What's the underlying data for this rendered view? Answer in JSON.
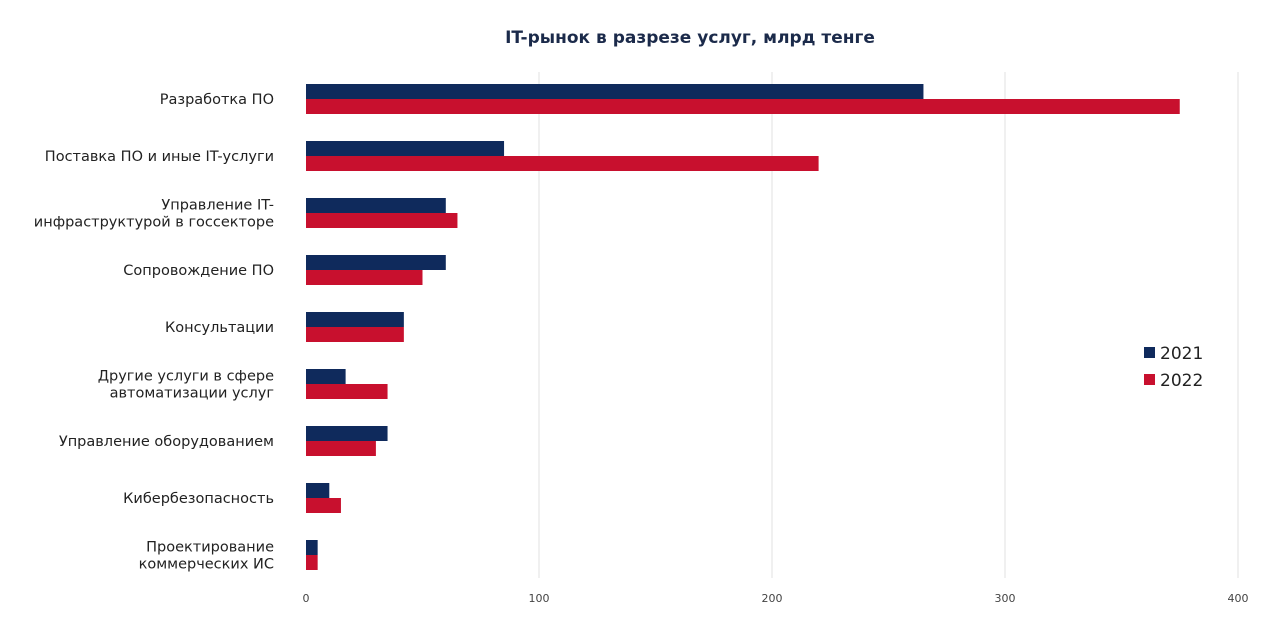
{
  "chart_data": {
    "type": "bar",
    "orientation": "horizontal",
    "title": "IT-рынок в разрезе услуг, млрд тенге",
    "categories": [
      [
        "Разработка ПО"
      ],
      [
        "Поставка ПО и иные IT-услуги"
      ],
      [
        "Управление IT-",
        "инфраструктурой в госсекторе"
      ],
      [
        "Сопровождение ПО"
      ],
      [
        "Консультации"
      ],
      [
        "Другие услуги в сфере",
        "автоматизации услуг"
      ],
      [
        "Управление оборудованием"
      ],
      [
        "Кибербезопасность"
      ],
      [
        "Проектирование",
        "коммерческих ИС"
      ]
    ],
    "series": [
      {
        "name": "2021",
        "color": "#0f2a5c",
        "values": [
          265,
          85,
          60,
          60,
          42,
          17,
          35,
          10,
          5
        ]
      },
      {
        "name": "2022",
        "color": "#c8102e",
        "values": [
          375,
          220,
          65,
          50,
          42,
          35,
          30,
          15,
          5
        ]
      }
    ],
    "xlim": [
      0,
      400
    ],
    "xticks": [
      0,
      100,
      200,
      300,
      400
    ],
    "grid": true,
    "legend_position": "right"
  }
}
